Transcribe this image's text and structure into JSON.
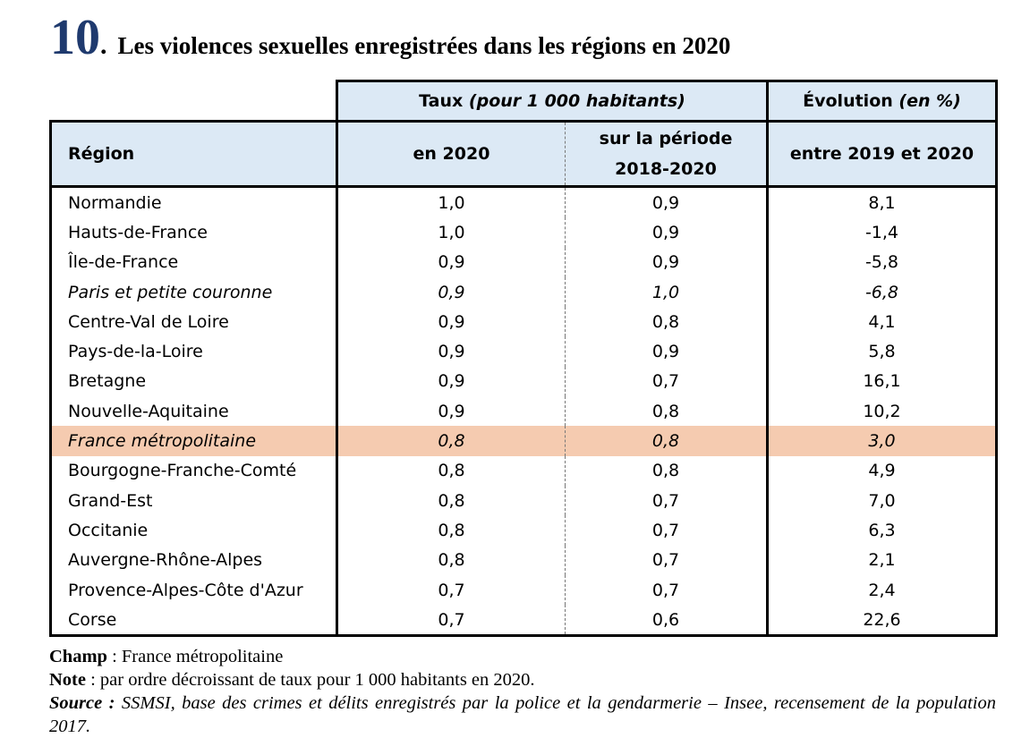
{
  "title": {
    "number": "10",
    "dot": ".",
    "text": "Les violences sexuelles enregistrées dans les régions en 2020"
  },
  "table": {
    "header1": {
      "rate_label": "Taux",
      "rate_unit": "(pour 1 000 habitants)",
      "evo_label": "Évolution",
      "evo_unit": "(en %)"
    },
    "header2": {
      "region": "Région",
      "col_2020": "en 2020",
      "col_period_line1": "sur la période",
      "col_period_line2": "2018-2020",
      "col_evo": "entre 2019 et 2020"
    },
    "rows": [
      {
        "region": "Normandie",
        "rate_2020": "1,0",
        "rate_period": "0,9",
        "evolution": "8,1"
      },
      {
        "region": "Hauts-de-France",
        "rate_2020": "1,0",
        "rate_period": "0,9",
        "evolution": "-1,4"
      },
      {
        "region": "Île-de-France",
        "rate_2020": "0,9",
        "rate_period": "0,9",
        "evolution": "-5,8"
      },
      {
        "region": "Paris et petite couronne",
        "rate_2020": "0,9",
        "rate_period": "1,0",
        "evolution": "-6,8"
      },
      {
        "region": "Centre-Val de Loire",
        "rate_2020": "0,9",
        "rate_period": "0,8",
        "evolution": "4,1"
      },
      {
        "region": "Pays-de-la-Loire",
        "rate_2020": "0,9",
        "rate_period": "0,9",
        "evolution": "5,8"
      },
      {
        "region": "Bretagne",
        "rate_2020": "0,9",
        "rate_period": "0,7",
        "evolution": "16,1"
      },
      {
        "region": "Nouvelle-Aquitaine",
        "rate_2020": "0,9",
        "rate_period": "0,8",
        "evolution": "10,2"
      },
      {
        "region": "France métropolitaine",
        "rate_2020": "0,8",
        "rate_period": "0,8",
        "evolution": "3,0"
      },
      {
        "region": "Bourgogne-Franche-Comté",
        "rate_2020": "0,8",
        "rate_period": "0,8",
        "evolution": "4,9"
      },
      {
        "region": "Grand-Est",
        "rate_2020": "0,8",
        "rate_period": "0,7",
        "evolution": "7,0"
      },
      {
        "region": "Occitanie",
        "rate_2020": "0,8",
        "rate_period": "0,7",
        "evolution": "6,3"
      },
      {
        "region": "Auvergne-Rhône-Alpes",
        "rate_2020": "0,8",
        "rate_period": "0,7",
        "evolution": "2,1"
      },
      {
        "region": "Provence-Alpes-Côte d'Azur",
        "rate_2020": "0,7",
        "rate_period": "0,7",
        "evolution": "2,4"
      },
      {
        "region": "Corse",
        "rate_2020": "0,7",
        "rate_period": "0,6",
        "evolution": "22,6"
      }
    ]
  },
  "notes": {
    "champ_label": "Champ",
    "champ_text": " : France métropolitaine",
    "note_label": "Note",
    "note_text": " : par ordre décroissant de taux pour 1 000 habitants en 2020.",
    "source_label": "Source :",
    "source_text": " SSMSI, base des crimes et délits enregistrés par la police et la gendarmerie – Insee, recensement de la population 2017."
  },
  "colors": {
    "title_number": "#1f3a6e",
    "header_bg": "#dce9f5",
    "highlight_bg": "#f5cbb0"
  }
}
